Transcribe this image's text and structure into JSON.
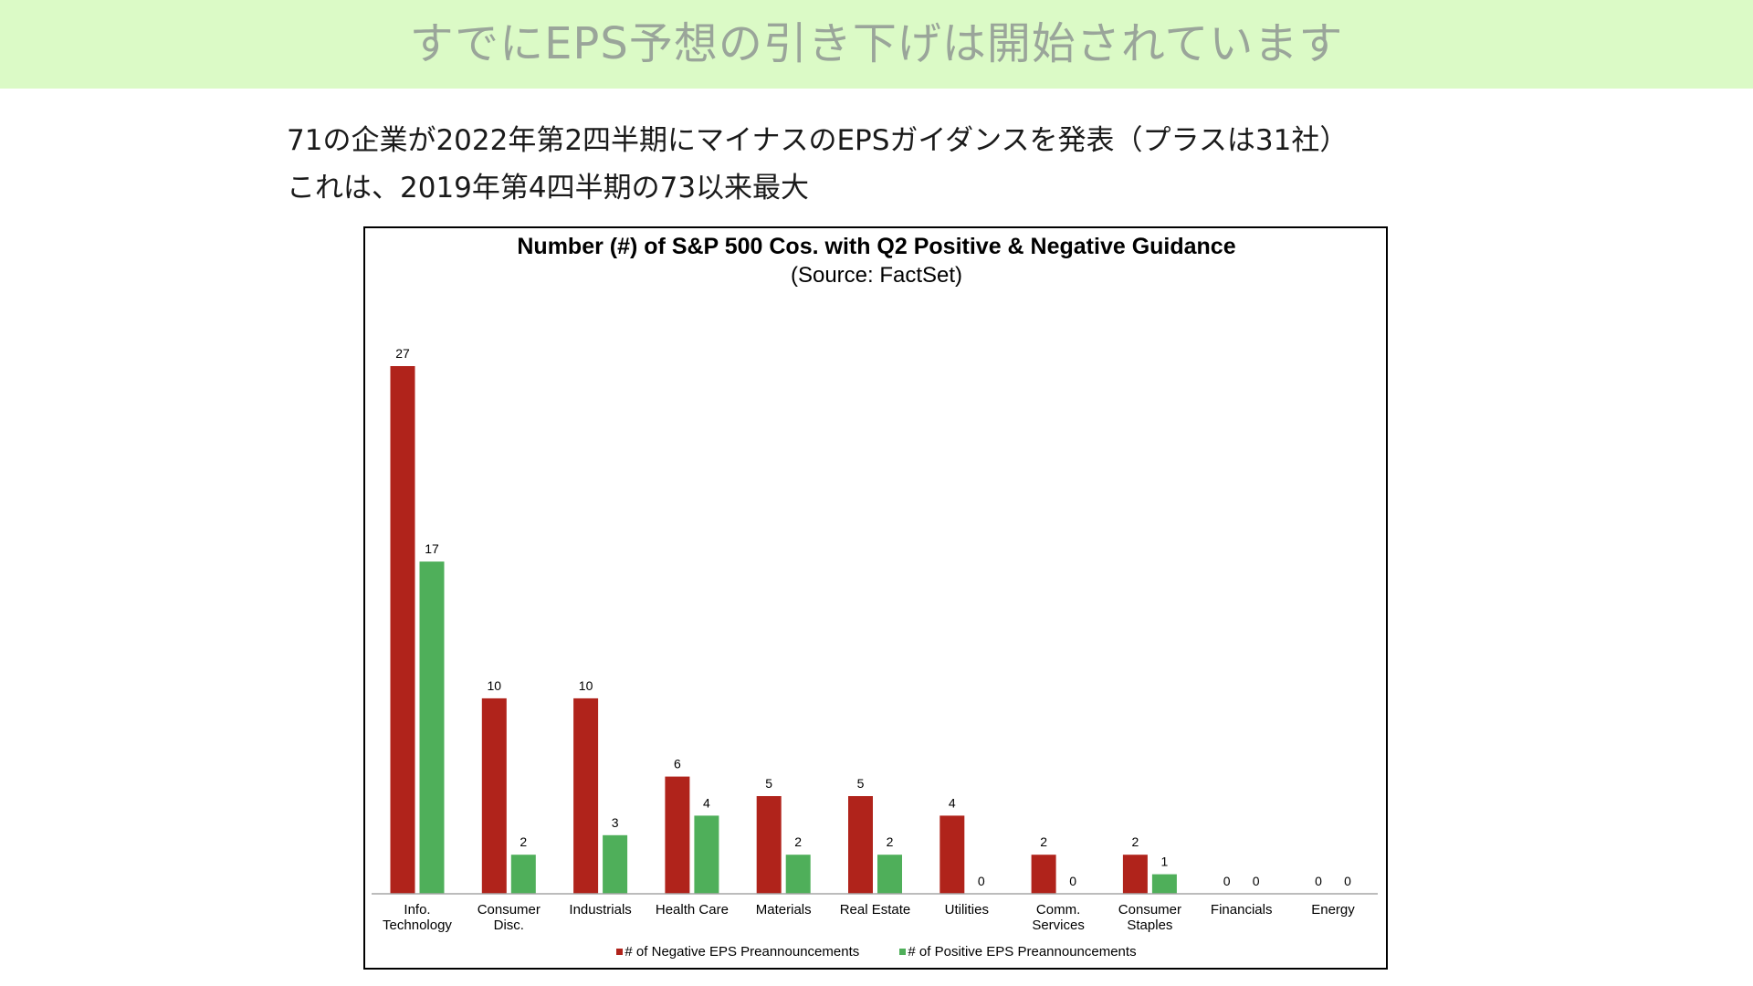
{
  "header": {
    "title": "すでにEPS予想の引き下げは開始されています",
    "band_color": "#dbfac6"
  },
  "summary": {
    "line1": "71の企業が2022年第2四半期にマイナスのEPSガイダンスを発表（プラスは31社）",
    "line2": "これは、2019年第4四半期の73以来最大"
  },
  "chart_data": {
    "type": "bar",
    "title": "Number (#) of S&P 500 Cos. with Q2 Positive & Negative Guidance",
    "subtitle": "(Source: FactSet)",
    "categories": [
      "Info. Technology",
      "Consumer Disc.",
      "Industrials",
      "Health Care",
      "Materials",
      "Real Estate",
      "Utilities",
      "Comm. Services",
      "Consumer Staples",
      "Financials",
      "Energy"
    ],
    "category_lines": [
      [
        "Info.",
        "Technology"
      ],
      [
        "Consumer",
        "Disc."
      ],
      [
        "Industrials"
      ],
      [
        "Health Care"
      ],
      [
        "Materials"
      ],
      [
        "Real Estate"
      ],
      [
        "Utilities"
      ],
      [
        "Comm.",
        "Services"
      ],
      [
        "Consumer",
        "Staples"
      ],
      [
        "Financials"
      ],
      [
        "Energy"
      ]
    ],
    "series": [
      {
        "name": "# of Negative EPS Preannouncements",
        "color": "#b0231b",
        "values": [
          27,
          10,
          10,
          6,
          5,
          5,
          4,
          2,
          2,
          0,
          0
        ]
      },
      {
        "name": "# of Positive EPS Preannouncements",
        "color": "#4faf5a",
        "values": [
          17,
          2,
          3,
          4,
          2,
          2,
          0,
          0,
          1,
          0,
          0
        ]
      }
    ],
    "ylim": [
      0,
      27
    ],
    "grid": false,
    "data_labels": true,
    "legend_position": "bottom"
  }
}
